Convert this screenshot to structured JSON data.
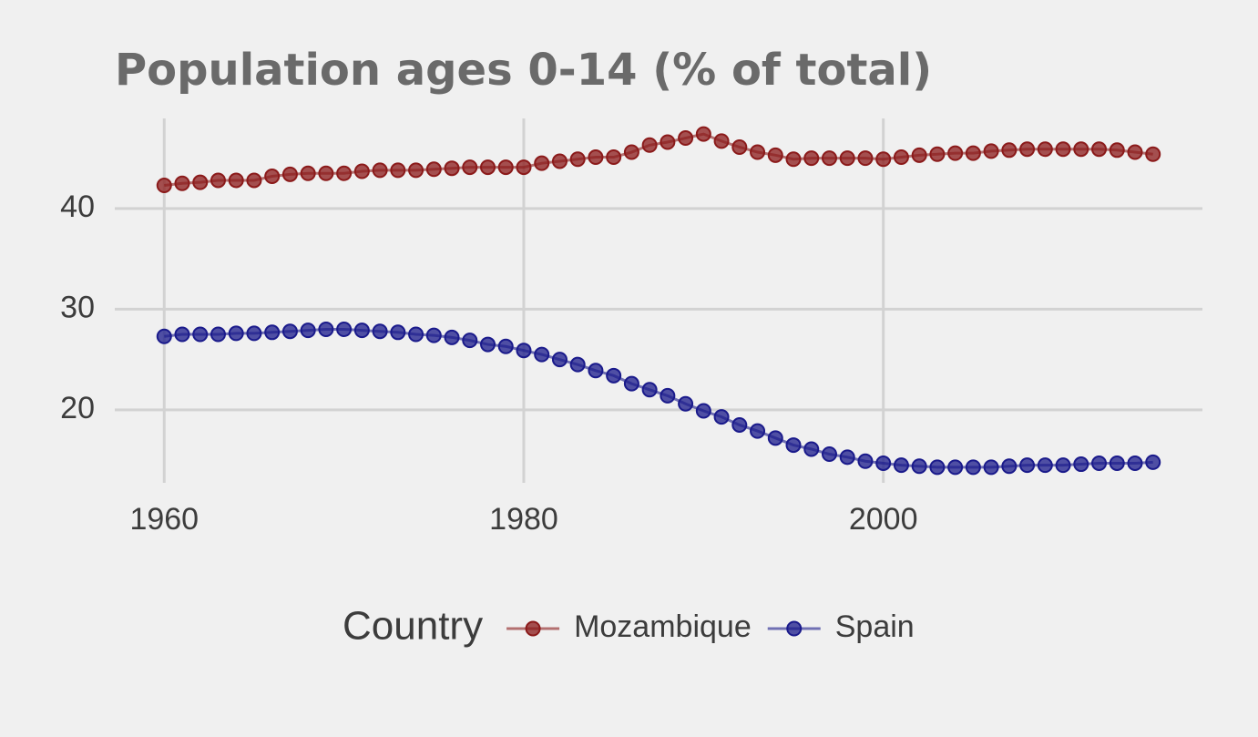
{
  "chart_data": {
    "type": "line",
    "title": "Population ages 0-14 (% of total)",
    "legend_title": "Country",
    "legend": "bottom",
    "grid": true,
    "x": [
      1960,
      1961,
      1962,
      1963,
      1964,
      1965,
      1966,
      1967,
      1968,
      1969,
      1970,
      1971,
      1972,
      1973,
      1974,
      1975,
      1976,
      1977,
      1978,
      1979,
      1980,
      1981,
      1982,
      1983,
      1984,
      1985,
      1986,
      1987,
      1988,
      1989,
      1990,
      1991,
      1992,
      1993,
      1994,
      1995,
      1996,
      1997,
      1998,
      1999,
      2000,
      2001,
      2002,
      2003,
      2004,
      2005,
      2006,
      2007,
      2008,
      2009,
      2010,
      2011,
      2012,
      2013,
      2014,
      2015
    ],
    "series": [
      {
        "name": "Mozambique",
        "color": "#8b1a1a",
        "values": [
          42.3,
          42.5,
          42.6,
          42.8,
          42.8,
          42.8,
          43.2,
          43.4,
          43.5,
          43.5,
          43.5,
          43.7,
          43.8,
          43.8,
          43.8,
          43.9,
          44.0,
          44.1,
          44.1,
          44.1,
          44.1,
          44.5,
          44.7,
          44.9,
          45.1,
          45.1,
          45.6,
          46.3,
          46.6,
          47.0,
          47.4,
          46.7,
          46.1,
          45.6,
          45.3,
          44.9,
          45.0,
          45.0,
          45.0,
          45.0,
          44.9,
          45.1,
          45.3,
          45.4,
          45.5,
          45.5,
          45.7,
          45.8,
          45.9,
          45.9,
          45.9,
          45.9,
          45.9,
          45.8,
          45.6,
          45.4
        ]
      },
      {
        "name": "Spain",
        "color": "#1a1a8b",
        "values": [
          27.3,
          27.5,
          27.5,
          27.5,
          27.6,
          27.6,
          27.7,
          27.8,
          27.9,
          28.0,
          28.0,
          27.9,
          27.8,
          27.7,
          27.5,
          27.4,
          27.2,
          26.9,
          26.5,
          26.3,
          25.9,
          25.5,
          25.0,
          24.5,
          23.9,
          23.4,
          22.6,
          22.0,
          21.4,
          20.6,
          19.9,
          19.3,
          18.5,
          17.9,
          17.2,
          16.5,
          16.1,
          15.6,
          15.3,
          14.9,
          14.7,
          14.5,
          14.4,
          14.3,
          14.3,
          14.3,
          14.3,
          14.4,
          14.5,
          14.5,
          14.5,
          14.6,
          14.7,
          14.7,
          14.7,
          14.8
        ]
      }
    ],
    "xlim": [
      1957.25,
      2017.75
    ],
    "xticks": [
      1960,
      1980,
      2000
    ],
    "ylim": [
      12.75,
      48.95
    ],
    "yticks": [
      20,
      30,
      40
    ]
  }
}
